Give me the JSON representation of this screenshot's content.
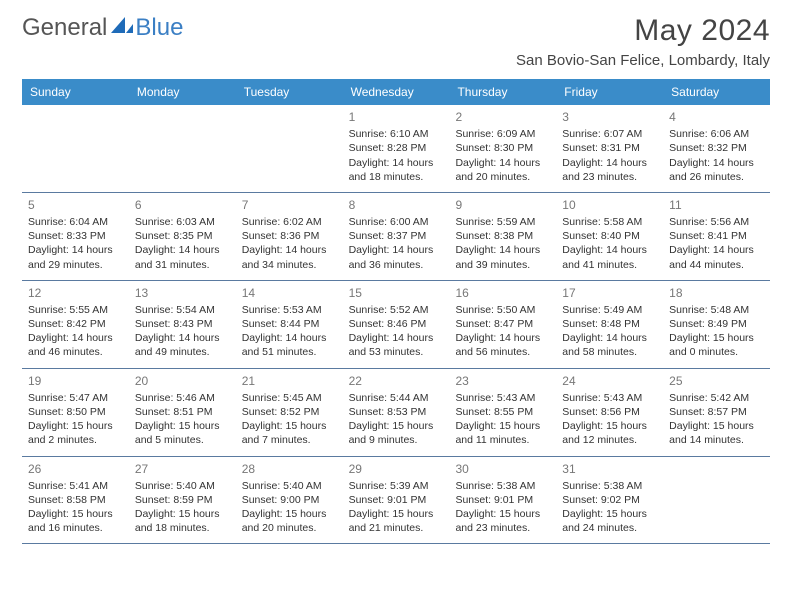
{
  "logo": {
    "word1": "General",
    "word2": "Blue"
  },
  "title": "May 2024",
  "location": "San Bovio-San Felice, Lombardy, Italy",
  "colors": {
    "header_bg": "#3a8cc9",
    "header_text": "#ffffff",
    "row_border": "#5a7aa0",
    "text": "#333333",
    "daynum": "#777777",
    "title_color": "#444444",
    "logo_gray": "#555555",
    "logo_blue": "#3b7fc4",
    "bg": "#ffffff"
  },
  "day_names": [
    "Sunday",
    "Monday",
    "Tuesday",
    "Wednesday",
    "Thursday",
    "Friday",
    "Saturday"
  ],
  "weeks": [
    [
      null,
      null,
      null,
      {
        "n": "1",
        "sr": "6:10 AM",
        "ss": "8:28 PM",
        "dl": "14 hours and 18 minutes."
      },
      {
        "n": "2",
        "sr": "6:09 AM",
        "ss": "8:30 PM",
        "dl": "14 hours and 20 minutes."
      },
      {
        "n": "3",
        "sr": "6:07 AM",
        "ss": "8:31 PM",
        "dl": "14 hours and 23 minutes."
      },
      {
        "n": "4",
        "sr": "6:06 AM",
        "ss": "8:32 PM",
        "dl": "14 hours and 26 minutes."
      }
    ],
    [
      {
        "n": "5",
        "sr": "6:04 AM",
        "ss": "8:33 PM",
        "dl": "14 hours and 29 minutes."
      },
      {
        "n": "6",
        "sr": "6:03 AM",
        "ss": "8:35 PM",
        "dl": "14 hours and 31 minutes."
      },
      {
        "n": "7",
        "sr": "6:02 AM",
        "ss": "8:36 PM",
        "dl": "14 hours and 34 minutes."
      },
      {
        "n": "8",
        "sr": "6:00 AM",
        "ss": "8:37 PM",
        "dl": "14 hours and 36 minutes."
      },
      {
        "n": "9",
        "sr": "5:59 AM",
        "ss": "8:38 PM",
        "dl": "14 hours and 39 minutes."
      },
      {
        "n": "10",
        "sr": "5:58 AM",
        "ss": "8:40 PM",
        "dl": "14 hours and 41 minutes."
      },
      {
        "n": "11",
        "sr": "5:56 AM",
        "ss": "8:41 PM",
        "dl": "14 hours and 44 minutes."
      }
    ],
    [
      {
        "n": "12",
        "sr": "5:55 AM",
        "ss": "8:42 PM",
        "dl": "14 hours and 46 minutes."
      },
      {
        "n": "13",
        "sr": "5:54 AM",
        "ss": "8:43 PM",
        "dl": "14 hours and 49 minutes."
      },
      {
        "n": "14",
        "sr": "5:53 AM",
        "ss": "8:44 PM",
        "dl": "14 hours and 51 minutes."
      },
      {
        "n": "15",
        "sr": "5:52 AM",
        "ss": "8:46 PM",
        "dl": "14 hours and 53 minutes."
      },
      {
        "n": "16",
        "sr": "5:50 AM",
        "ss": "8:47 PM",
        "dl": "14 hours and 56 minutes."
      },
      {
        "n": "17",
        "sr": "5:49 AM",
        "ss": "8:48 PM",
        "dl": "14 hours and 58 minutes."
      },
      {
        "n": "18",
        "sr": "5:48 AM",
        "ss": "8:49 PM",
        "dl": "15 hours and 0 minutes."
      }
    ],
    [
      {
        "n": "19",
        "sr": "5:47 AM",
        "ss": "8:50 PM",
        "dl": "15 hours and 2 minutes."
      },
      {
        "n": "20",
        "sr": "5:46 AM",
        "ss": "8:51 PM",
        "dl": "15 hours and 5 minutes."
      },
      {
        "n": "21",
        "sr": "5:45 AM",
        "ss": "8:52 PM",
        "dl": "15 hours and 7 minutes."
      },
      {
        "n": "22",
        "sr": "5:44 AM",
        "ss": "8:53 PM",
        "dl": "15 hours and 9 minutes."
      },
      {
        "n": "23",
        "sr": "5:43 AM",
        "ss": "8:55 PM",
        "dl": "15 hours and 11 minutes."
      },
      {
        "n": "24",
        "sr": "5:43 AM",
        "ss": "8:56 PM",
        "dl": "15 hours and 12 minutes."
      },
      {
        "n": "25",
        "sr": "5:42 AM",
        "ss": "8:57 PM",
        "dl": "15 hours and 14 minutes."
      }
    ],
    [
      {
        "n": "26",
        "sr": "5:41 AM",
        "ss": "8:58 PM",
        "dl": "15 hours and 16 minutes."
      },
      {
        "n": "27",
        "sr": "5:40 AM",
        "ss": "8:59 PM",
        "dl": "15 hours and 18 minutes."
      },
      {
        "n": "28",
        "sr": "5:40 AM",
        "ss": "9:00 PM",
        "dl": "15 hours and 20 minutes."
      },
      {
        "n": "29",
        "sr": "5:39 AM",
        "ss": "9:01 PM",
        "dl": "15 hours and 21 minutes."
      },
      {
        "n": "30",
        "sr": "5:38 AM",
        "ss": "9:01 PM",
        "dl": "15 hours and 23 minutes."
      },
      {
        "n": "31",
        "sr": "5:38 AM",
        "ss": "9:02 PM",
        "dl": "15 hours and 24 minutes."
      },
      null
    ]
  ],
  "labels": {
    "sunrise": "Sunrise:",
    "sunset": "Sunset:",
    "daylight": "Daylight:"
  }
}
